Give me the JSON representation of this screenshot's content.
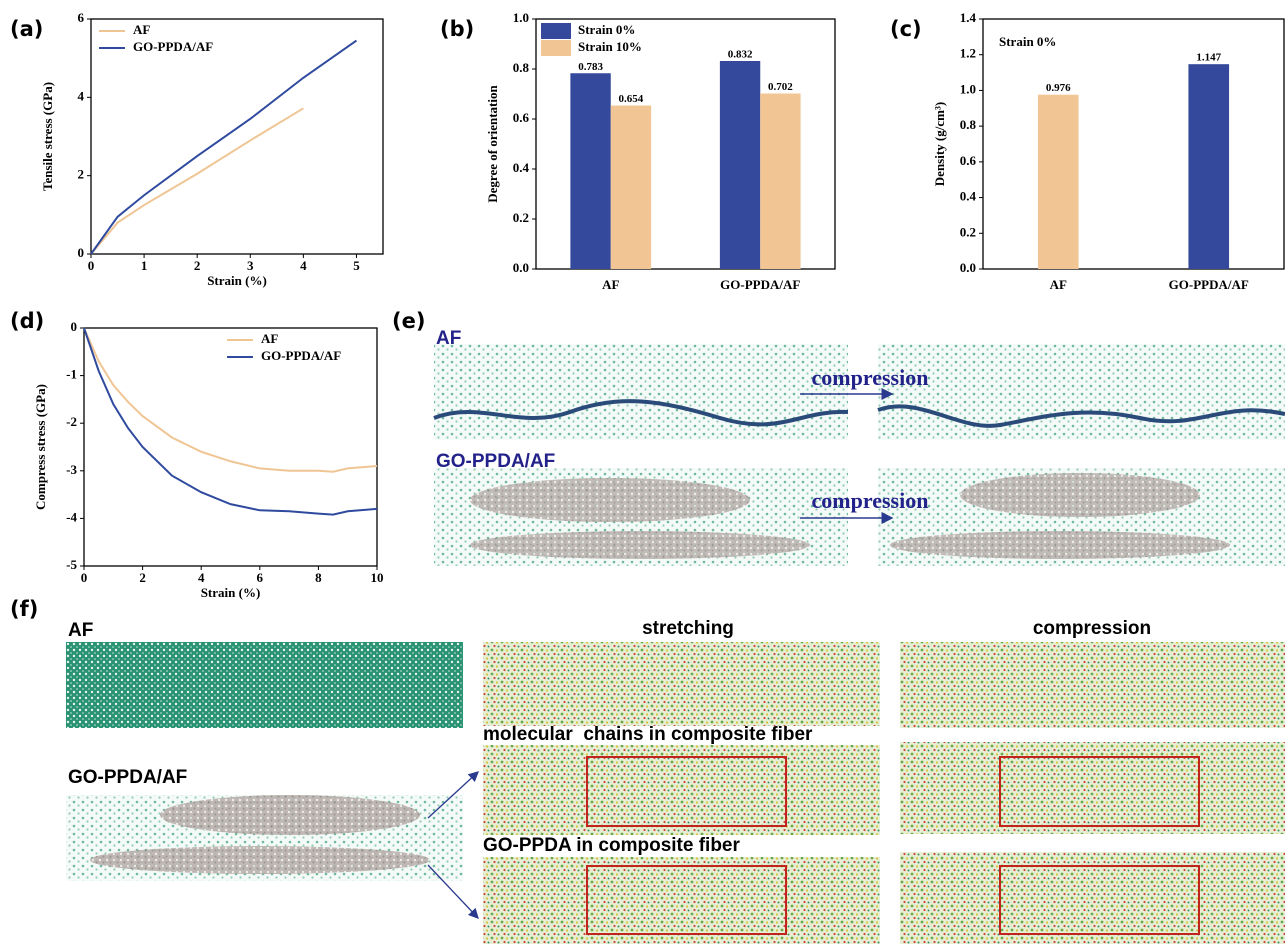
{
  "chart_data": [
    {
      "type": "line",
      "panel": "(a)",
      "xlabel": "Strain (%)",
      "ylabel": "Tensile stress (GPa)",
      "xlim": [
        0,
        5.5
      ],
      "xticks": [
        0,
        1,
        2,
        3,
        4,
        5
      ],
      "ylim": [
        0,
        6
      ],
      "yticks": [
        0,
        2,
        4,
        6
      ],
      "legend": "upper left",
      "series": [
        {
          "name": "AF",
          "color": "#f0c594",
          "x": [
            0,
            0.5,
            1,
            2,
            3,
            4
          ],
          "values": [
            0,
            0.8,
            1.25,
            2.05,
            2.9,
            3.72
          ]
        },
        {
          "name": "GO-PPDA/AF",
          "color": "#2f4a9e",
          "x": [
            0,
            0.5,
            1,
            2,
            3,
            4,
            5
          ],
          "values": [
            0,
            0.95,
            1.5,
            2.5,
            3.45,
            4.5,
            5.45
          ]
        }
      ]
    },
    {
      "type": "bar",
      "panel": "(b)",
      "ylabel": "Degree of orientation",
      "categories": [
        "AF",
        "GO-PPDA/AF"
      ],
      "ylim": [
        0,
        1
      ],
      "yticks": [
        {
          "value": 0,
          "label": "0.0"
        },
        0.2,
        0.4,
        0.6,
        0.8,
        {
          "value": 1,
          "label": "1.0"
        }
      ],
      "legend": "upper left",
      "series": [
        {
          "name": "Strain 0%",
          "color": "#34499c",
          "values": [
            0.783,
            0.832
          ]
        },
        {
          "name": "Strain 10%",
          "color": "#f2c594",
          "values": [
            0.654,
            0.702
          ]
        }
      ]
    },
    {
      "type": "bar",
      "panel": "(c)",
      "ylabel": "Density (g/cm³)",
      "annotation": "Strain 0%",
      "categories": [
        "AF",
        "GO-PPDA/AF"
      ],
      "values": [
        0.976,
        1.147
      ],
      "colors": [
        "#f2c594",
        "#34499c"
      ],
      "ylim": [
        0,
        1.4
      ],
      "yticks": [
        {
          "value": 0,
          "label": "0.0"
        },
        0.2,
        0.4,
        0.6,
        0.8,
        {
          "value": 1,
          "label": "1.0"
        },
        1.2,
        1.4
      ]
    },
    {
      "type": "line",
      "panel": "(d)",
      "xlabel": "Strain (%)",
      "ylabel": "Compress stress (GPa)",
      "xlim": [
        0,
        10
      ],
      "xticks": [
        0,
        2,
        4,
        6,
        8,
        10
      ],
      "ylim": [
        -5,
        0
      ],
      "yticks": [
        -5,
        -4,
        -3,
        -2,
        -1,
        0
      ],
      "legend": "upper right",
      "series": [
        {
          "name": "AF",
          "color": "#f0c594",
          "x": [
            0,
            0.5,
            1,
            1.5,
            2,
            3,
            4,
            5,
            6,
            7,
            8,
            8.5,
            9,
            10
          ],
          "values": [
            0,
            -0.7,
            -1.2,
            -1.55,
            -1.85,
            -2.3,
            -2.6,
            -2.8,
            -2.95,
            -3,
            -3,
            -3.02,
            -2.95,
            -2.9
          ]
        },
        {
          "name": "GO-PPDA/AF",
          "color": "#2f4a9e",
          "x": [
            0,
            0.5,
            1,
            1.5,
            2,
            3,
            4,
            5,
            6,
            7,
            8,
            8.5,
            9,
            10
          ],
          "values": [
            0,
            -0.9,
            -1.6,
            -2.1,
            -2.5,
            -3.1,
            -3.45,
            -3.7,
            -3.83,
            -3.85,
            -3.9,
            -3.92,
            -3.85,
            -3.8
          ]
        }
      ]
    }
  ],
  "panel_e": {
    "label": "(e)",
    "rows": [
      {
        "name": "AF",
        "action": "compression"
      },
      {
        "name": "GO-PPDA/AF",
        "action": "compression"
      }
    ]
  },
  "panel_f": {
    "label": "(f)",
    "columns": [
      "stretching",
      "compression"
    ],
    "rows": [
      "AF",
      "GO-PPDA/AF"
    ],
    "captions": [
      "molecular  chains in composite fiber",
      "GO-PPDA in composite fiber"
    ]
  }
}
